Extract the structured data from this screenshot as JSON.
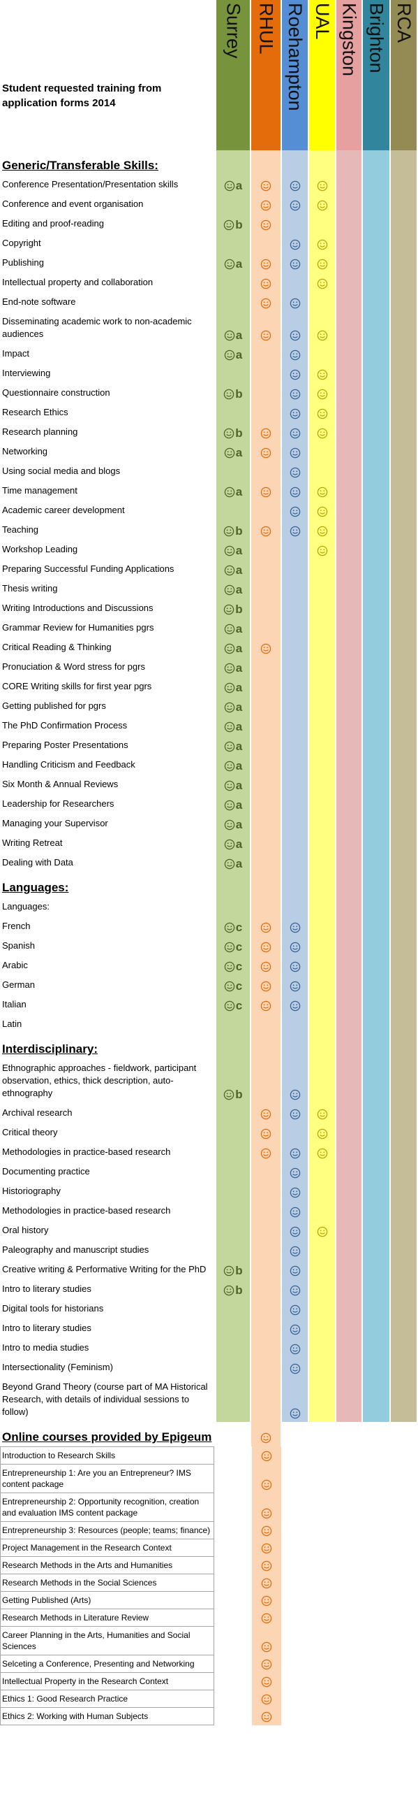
{
  "title": "Student requested training from application forms 2014",
  "columns": [
    {
      "name": "Surrey",
      "color": "#77933c",
      "fill": "#c3d69b",
      "ink": "#4f6228"
    },
    {
      "name": "RHUL",
      "color": "#e46c0a",
      "fill": "#fcd5b5",
      "ink": "#e46c0a"
    },
    {
      "name": "Roehampton",
      "color": "#558ed5",
      "fill": "#b9cde5",
      "ink": "#376092"
    },
    {
      "name": "UAL",
      "color": "#ffff00",
      "fill": "#ffff80",
      "ink": "#b3a600"
    },
    {
      "name": "Kingston",
      "color": "#e6a0a0",
      "fill": "#e6b9b8",
      "ink": "#943634"
    },
    {
      "name": "Brighton",
      "color": "#31859c",
      "fill": "#93cddd",
      "ink": "#215968"
    },
    {
      "name": "RCA",
      "color": "#948a54",
      "fill": "#c4bd97",
      "ink": "#4a452a"
    }
  ],
  "sections": [
    {
      "heading": "Generic/Transferable Skills:",
      "rows": [
        {
          "label": "Conference Presentation/Presentation skills",
          "cells": [
            "a",
            true,
            true,
            true,
            null,
            null,
            null
          ]
        },
        {
          "label": "Conference and event organisation",
          "cells": [
            null,
            true,
            true,
            true,
            null,
            null,
            null
          ]
        },
        {
          "label": "Editing and proof-reading",
          "cells": [
            "b",
            true,
            null,
            null,
            null,
            null,
            null
          ]
        },
        {
          "label": "Copyright",
          "cells": [
            null,
            null,
            true,
            true,
            null,
            null,
            null
          ]
        },
        {
          "label": "Publishing",
          "cells": [
            "a",
            true,
            true,
            true,
            null,
            null,
            null
          ]
        },
        {
          "label": "Intellectual property and collaboration",
          "cells": [
            null,
            true,
            null,
            true,
            null,
            null,
            null
          ]
        },
        {
          "label": "End-note software",
          "cells": [
            null,
            true,
            true,
            null,
            null,
            null,
            null
          ]
        },
        {
          "label": "Disseminating academic work to non-academic audiences",
          "cells": [
            "a",
            true,
            true,
            true,
            null,
            null,
            null
          ]
        },
        {
          "label": "Impact",
          "cells": [
            "a",
            null,
            true,
            null,
            null,
            null,
            null
          ]
        },
        {
          "label": "Interviewing",
          "cells": [
            null,
            null,
            true,
            true,
            null,
            null,
            null
          ]
        },
        {
          "label": "Questionnaire construction",
          "cells": [
            "b",
            null,
            true,
            true,
            null,
            null,
            null
          ]
        },
        {
          "label": "Research Ethics",
          "cells": [
            null,
            null,
            true,
            true,
            null,
            null,
            null
          ]
        },
        {
          "label": "Research planning",
          "cells": [
            "b",
            true,
            true,
            true,
            null,
            null,
            null
          ]
        },
        {
          "label": "Networking",
          "cells": [
            "a",
            true,
            true,
            null,
            null,
            null,
            null
          ]
        },
        {
          "label": "Using social media and blogs",
          "cells": [
            null,
            null,
            true,
            null,
            null,
            null,
            null
          ]
        },
        {
          "label": "Time management",
          "cells": [
            "a",
            true,
            true,
            true,
            null,
            null,
            null
          ]
        },
        {
          "label": "Academic career development",
          "cells": [
            null,
            null,
            true,
            true,
            null,
            null,
            null
          ]
        },
        {
          "label": "Teaching",
          "cells": [
            "b",
            true,
            true,
            true,
            null,
            null,
            null
          ]
        },
        {
          "label": "Workshop Leading",
          "cells": [
            "a",
            null,
            null,
            true,
            null,
            null,
            null
          ]
        },
        {
          "label": "Preparing Successful Funding Applications",
          "cells": [
            "a",
            null,
            null,
            null,
            null,
            null,
            null
          ]
        },
        {
          "label": "Thesis writing",
          "cells": [
            "a",
            null,
            null,
            null,
            null,
            null,
            null
          ]
        },
        {
          "label": "Writing Introductions and Discussions",
          "cells": [
            "b",
            null,
            null,
            null,
            null,
            null,
            null
          ]
        },
        {
          "label": "Grammar Review for Humanities pgrs",
          "cells": [
            "a",
            null,
            null,
            null,
            null,
            null,
            null
          ]
        },
        {
          "label": "Critical Reading & Thinking",
          "cells": [
            "a",
            true,
            null,
            null,
            null,
            null,
            null
          ]
        },
        {
          "label": "Pronuciation & Word stress for pgrs",
          "cells": [
            "a",
            null,
            null,
            null,
            null,
            null,
            null
          ]
        },
        {
          "label": "CORE Writing skills for first year pgrs",
          "cells": [
            "a",
            null,
            null,
            null,
            null,
            null,
            null
          ]
        },
        {
          "label": "Getting published for pgrs",
          "cells": [
            "a",
            null,
            null,
            null,
            null,
            null,
            null
          ]
        },
        {
          "label": "The PhD Confirmation Process",
          "cells": [
            "a",
            null,
            null,
            null,
            null,
            null,
            null
          ]
        },
        {
          "label": "Preparing Poster Presentations",
          "cells": [
            "a",
            null,
            null,
            null,
            null,
            null,
            null
          ]
        },
        {
          "label": "Handling Criticism and Feedback",
          "cells": [
            "a",
            null,
            null,
            null,
            null,
            null,
            null
          ]
        },
        {
          "label": "Six Month & Annual Reviews",
          "cells": [
            "a",
            null,
            null,
            null,
            null,
            null,
            null
          ]
        },
        {
          "label": "Leadership for Researchers",
          "cells": [
            "a",
            null,
            null,
            null,
            null,
            null,
            null
          ]
        },
        {
          "label": "Managing your Supervisor",
          "cells": [
            "a",
            null,
            null,
            null,
            null,
            null,
            null
          ]
        },
        {
          "label": "Writing Retreat",
          "cells": [
            "a",
            null,
            null,
            null,
            null,
            null,
            null
          ]
        },
        {
          "label": "Dealing with Data",
          "cells": [
            "a",
            null,
            null,
            null,
            null,
            null,
            null
          ]
        }
      ]
    },
    {
      "heading": "Languages:",
      "rows": [
        {
          "label": "Languages:",
          "cells": [
            null,
            null,
            null,
            null,
            null,
            null,
            null
          ]
        },
        {
          "label": "French",
          "cells": [
            "c",
            true,
            true,
            null,
            null,
            null,
            null
          ]
        },
        {
          "label": "Spanish",
          "cells": [
            "c",
            true,
            true,
            null,
            null,
            null,
            null
          ]
        },
        {
          "label": "Arabic",
          "cells": [
            "c",
            true,
            true,
            null,
            null,
            null,
            null
          ]
        },
        {
          "label": "German",
          "cells": [
            "c",
            true,
            true,
            null,
            null,
            null,
            null
          ]
        },
        {
          "label": "Italian",
          "cells": [
            "c",
            true,
            true,
            null,
            null,
            null,
            null
          ]
        },
        {
          "label": "Latin",
          "cells": [
            null,
            null,
            null,
            null,
            null,
            null,
            null
          ]
        }
      ]
    },
    {
      "heading": "Interdisciplinary:",
      "rows": [
        {
          "label": "Ethnographic approaches - fieldwork, participant observation, ethics, thick description, auto-ethnography",
          "cells": [
            "b",
            null,
            true,
            null,
            null,
            null,
            null
          ]
        },
        {
          "label": "Archival research",
          "cells": [
            null,
            true,
            true,
            true,
            null,
            null,
            null
          ]
        },
        {
          "label": "Critical theory",
          "cells": [
            null,
            true,
            null,
            true,
            null,
            null,
            null
          ]
        },
        {
          "label": "Methodologies in practice-based research",
          "cells": [
            null,
            true,
            true,
            true,
            null,
            null,
            null
          ]
        },
        {
          "label": "Documenting practice",
          "cells": [
            null,
            null,
            true,
            null,
            null,
            null,
            null
          ]
        },
        {
          "label": "Historiography",
          "cells": [
            null,
            null,
            true,
            null,
            null,
            null,
            null
          ]
        },
        {
          "label": "Methodologies in practice-based research",
          "cells": [
            null,
            null,
            true,
            null,
            null,
            null,
            null
          ]
        },
        {
          "label": "Oral history",
          "cells": [
            null,
            null,
            true,
            true,
            null,
            null,
            null
          ]
        },
        {
          "label": "Paleography and manuscript studies",
          "cells": [
            null,
            null,
            true,
            null,
            null,
            null,
            null
          ]
        },
        {
          "label": "Creative writing & Performative Writing for the PhD",
          "cells": [
            "b",
            null,
            true,
            null,
            null,
            null,
            null
          ]
        },
        {
          "label": "Intro to literary studies",
          "cells": [
            "b",
            null,
            true,
            null,
            null,
            null,
            null
          ]
        },
        {
          "label": "Digital tools for historians",
          "cells": [
            null,
            null,
            true,
            null,
            null,
            null,
            null
          ]
        },
        {
          "label": "Intro to literary studies",
          "cells": [
            null,
            null,
            true,
            null,
            null,
            null,
            null
          ]
        },
        {
          "label": "Intro to media studies",
          "cells": [
            null,
            null,
            true,
            null,
            null,
            null,
            null
          ]
        },
        {
          "label": "Intersectionality (Feminism)",
          "cells": [
            null,
            null,
            true,
            null,
            null,
            null,
            null
          ]
        },
        {
          "label": "Beyond Grand Theory (course part of MA Historical Research, with details of individual sessions to follow)",
          "cells": [
            null,
            null,
            true,
            null,
            null,
            null,
            null
          ]
        }
      ]
    },
    {
      "heading": "Online courses provided by Epigeum",
      "bordered": true,
      "band_columns": [
        1
      ],
      "heading_cells": [
        null,
        true,
        null,
        null,
        null,
        null,
        null
      ],
      "rows": [
        {
          "label": "Introduction to Research Skills",
          "cells": [
            null,
            true,
            null,
            null,
            null,
            null,
            null
          ]
        },
        {
          "label": "Entrepreneurship 1: Are you an Entrepreneur?  IMS content package",
          "cells": [
            null,
            true,
            null,
            null,
            null,
            null,
            null
          ]
        },
        {
          "label": "Entrepreneurship 2: Opportunity recognition, creation and evaluation IMS content package",
          "cells": [
            null,
            true,
            null,
            null,
            null,
            null,
            null
          ]
        },
        {
          "label": "Entrepreneurship 3: Resources (people; teams; finance)",
          "cells": [
            null,
            true,
            null,
            null,
            null,
            null,
            null
          ]
        },
        {
          "label": "Project Management in the Research Context",
          "cells": [
            null,
            true,
            null,
            null,
            null,
            null,
            null
          ]
        },
        {
          "label": "Research Methods in the Arts and Humanities",
          "cells": [
            null,
            true,
            null,
            null,
            null,
            null,
            null
          ]
        },
        {
          "label": "Research Methods in the Social Sciences",
          "cells": [
            null,
            true,
            null,
            null,
            null,
            null,
            null
          ]
        },
        {
          "label": "Getting Published (Arts)",
          "cells": [
            null,
            true,
            null,
            null,
            null,
            null,
            null
          ]
        },
        {
          "label": "Research Methods in Literature Review",
          "cells": [
            null,
            true,
            null,
            null,
            null,
            null,
            null
          ]
        },
        {
          "label": "Career Planning in the Arts, Humanities and Social Sciences",
          "cells": [
            null,
            true,
            null,
            null,
            null,
            null,
            null
          ]
        },
        {
          "label": "Selceting a Conference, Presenting and Networking",
          "cells": [
            null,
            true,
            null,
            null,
            null,
            null,
            null
          ]
        },
        {
          "label": "Intellectual Property in the Research Context",
          "cells": [
            null,
            true,
            null,
            null,
            null,
            null,
            null
          ]
        },
        {
          "label": "Ethics 1: Good Research Practice",
          "cells": [
            null,
            true,
            null,
            null,
            null,
            null,
            null
          ]
        },
        {
          "label": "Ethics 2: Working with Human Subjects",
          "cells": [
            null,
            true,
            null,
            null,
            null,
            null,
            null
          ]
        }
      ]
    }
  ]
}
